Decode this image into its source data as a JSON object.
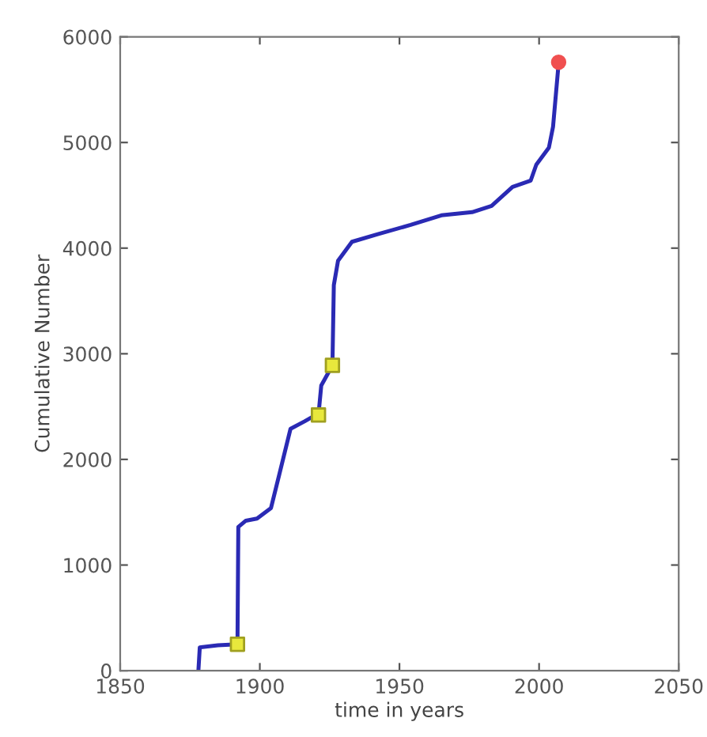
{
  "chart_data": {
    "type": "line",
    "xlabel": "time in years",
    "ylabel": "Cumulative Number",
    "xlim": [
      1850,
      2050
    ],
    "xticks": [
      1850,
      1900,
      1950,
      2000,
      2050
    ],
    "ylim": [
      0,
      6000
    ],
    "yticks": [
      0,
      1000,
      2000,
      3000,
      4000,
      5000,
      6000
    ],
    "grid": false,
    "series": [
      {
        "color": "#2a2ab4",
        "marker": "none",
        "line_style": "solid",
        "x": [
          1878,
          1878.5,
          1885,
          1892,
          1892.3,
          1895,
          1899,
          1904,
          1907,
          1911,
          1916,
          1920,
          1921,
          1922,
          1926,
          1926.5,
          1928,
          1933,
          1942,
          1954,
          1965,
          1976,
          1983,
          1990.5,
          1997,
          1999,
          2003.5,
          2005,
          2006,
          2007
        ],
        "values": [
          0,
          220,
          240,
          250,
          1360,
          1420,
          1440,
          1540,
          1860,
          2290,
          2360,
          2420,
          2420,
          2700,
          2890,
          3650,
          3880,
          4060,
          4130,
          4220,
          4310,
          4340,
          4400,
          4580,
          4640,
          4790,
          4950,
          5150,
          5450,
          5750
        ]
      },
      {
        "type": "scatter",
        "color": "#e8e83c",
        "marker": "square",
        "x": [
          1892,
          1921,
          1926
        ],
        "values": [
          250,
          2420,
          2890
        ]
      },
      {
        "type": "scatter",
        "color": "#f05050",
        "marker": "circle",
        "x": [
          2007
        ],
        "values": [
          5760
        ]
      }
    ]
  }
}
